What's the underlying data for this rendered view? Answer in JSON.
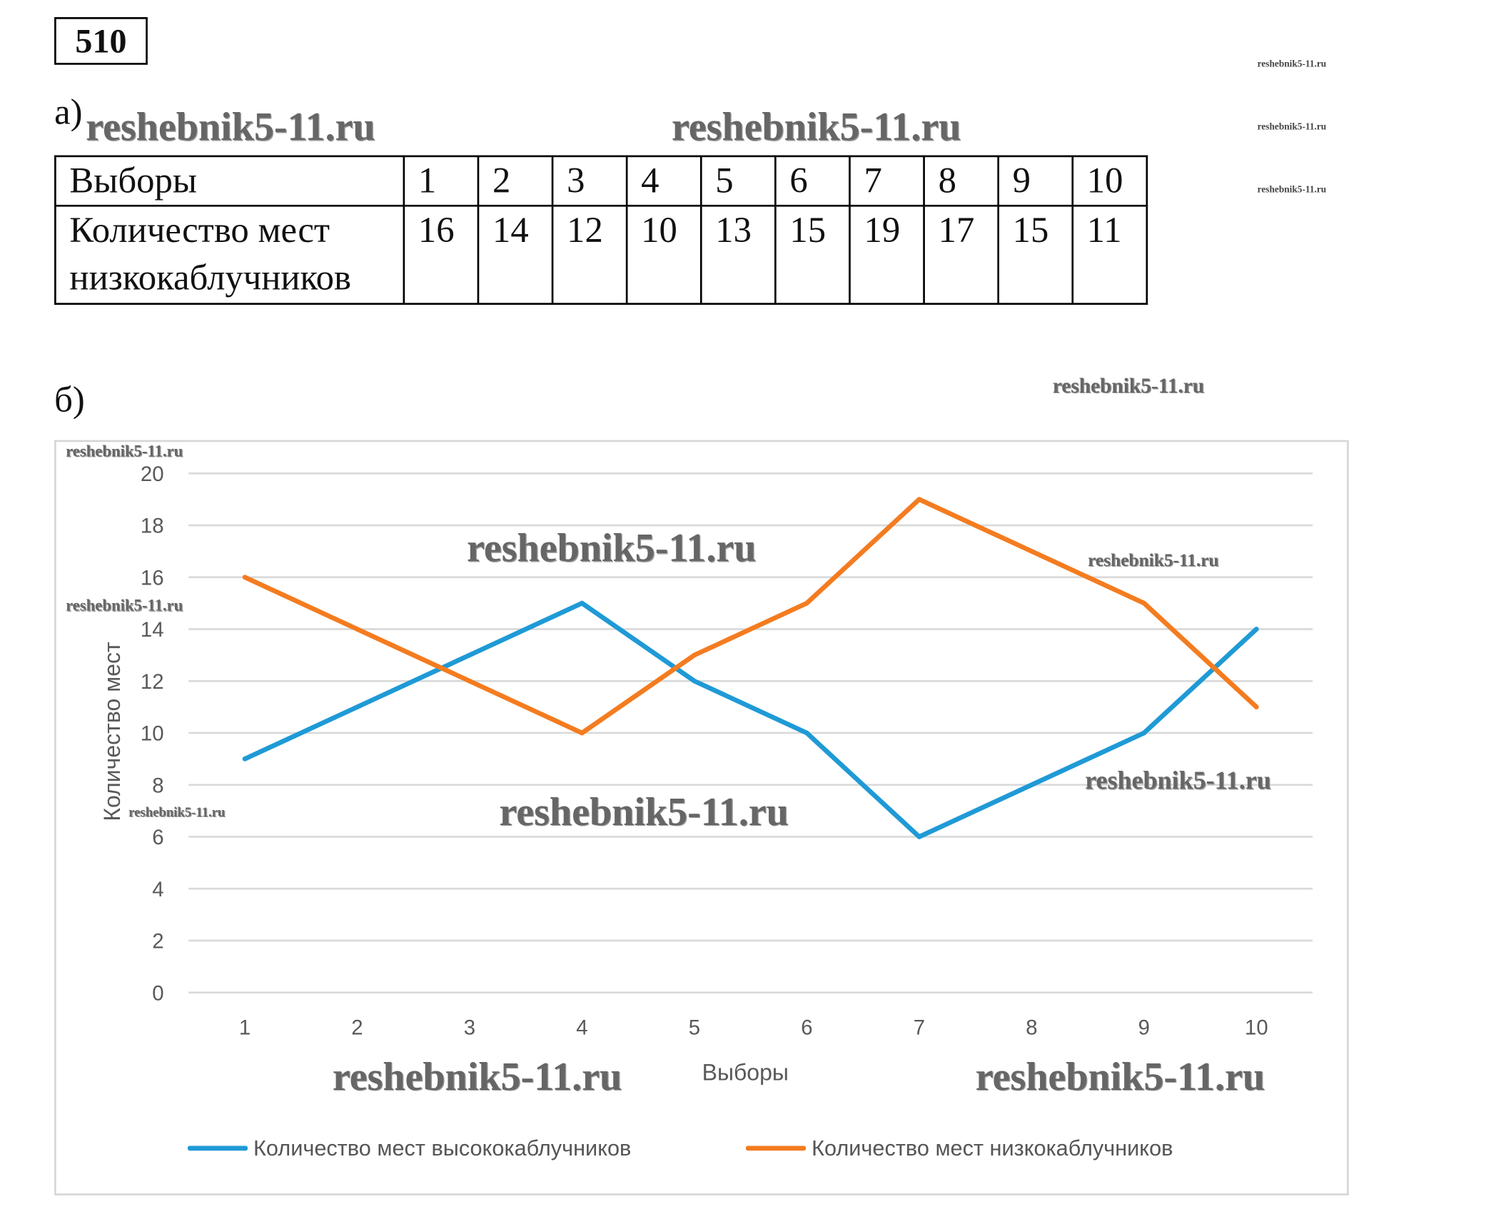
{
  "problem_number": "510",
  "part_a_label": "а)",
  "part_b_label": "б)",
  "table": {
    "row_headers": [
      "Выборы",
      "Количество мест низкокаблучников"
    ],
    "elections": [
      "1",
      "2",
      "3",
      "4",
      "5",
      "6",
      "7",
      "8",
      "9",
      "10"
    ],
    "seats": [
      "16",
      "14",
      "12",
      "10",
      "13",
      "15",
      "19",
      "17",
      "15",
      "11"
    ]
  },
  "watermark": "reshebnik5-11.ru",
  "chart_data": {
    "type": "line",
    "title": "",
    "xlabel": "Выборы",
    "ylabel": "Количество мест",
    "categories": [
      "1",
      "2",
      "3",
      "4",
      "5",
      "6",
      "7",
      "8",
      "9",
      "10"
    ],
    "ylim": [
      0,
      20
    ],
    "yticks": [
      "0",
      "2",
      "4",
      "6",
      "8",
      "10",
      "12",
      "14",
      "16",
      "18",
      "20"
    ],
    "grid": true,
    "legend_position": "bottom",
    "series": [
      {
        "name": "Количество мест высококаблучников",
        "color": "#1f9ad6",
        "values": [
          9,
          11,
          13,
          15,
          12,
          10,
          6,
          8,
          10,
          14
        ]
      },
      {
        "name": "Количество мест низкокаблучников",
        "color": "#f47c20",
        "values": [
          16,
          14,
          12,
          10,
          13,
          15,
          19,
          17,
          15,
          11
        ]
      }
    ]
  }
}
